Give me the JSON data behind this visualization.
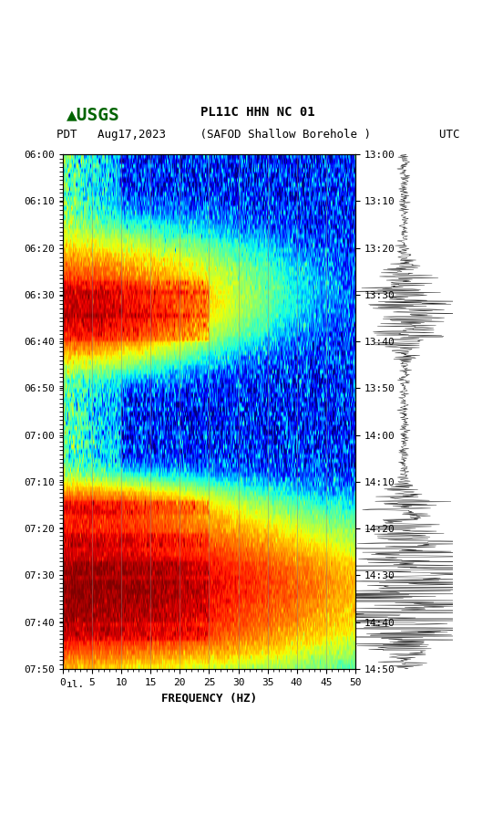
{
  "title_line1": "PL11C HHN NC 01",
  "title_line2": "(SAFOD Shallow Borehole )",
  "label_left": "PDT",
  "label_date": "Aug17,2023",
  "label_right": "UTC",
  "time_left_labels": [
    "06:00",
    "06:10",
    "06:20",
    "06:30",
    "06:40",
    "06:50",
    "07:00",
    "07:10",
    "07:20",
    "07:30",
    "07:40",
    "07:50"
  ],
  "time_right_labels": [
    "13:00",
    "13:10",
    "13:20",
    "13:30",
    "13:40",
    "13:50",
    "14:00",
    "14:10",
    "14:20",
    "14:30",
    "14:40",
    "14:50"
  ],
  "freq_min": 0,
  "freq_max": 50,
  "freq_ticks": [
    0,
    5,
    10,
    15,
    20,
    25,
    30,
    35,
    40,
    45,
    50
  ],
  "xlabel": "FREQUENCY (HZ)",
  "time_steps": 110,
  "freq_steps": 500,
  "background_color": "#ffffff",
  "grid_color": "#888888",
  "spectrogram_cmap": "jet",
  "fig_width": 5.52,
  "fig_height": 8.93,
  "dpi": 100
}
